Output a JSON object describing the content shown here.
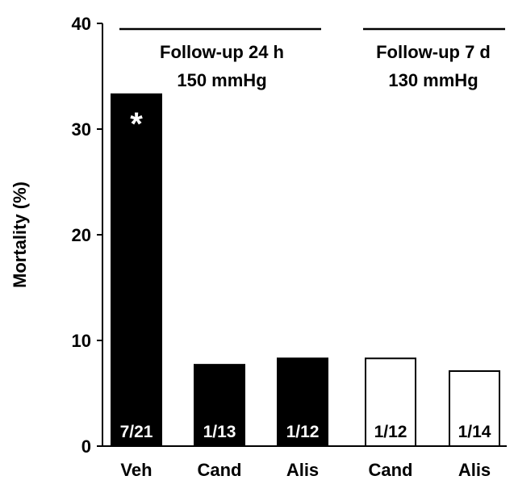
{
  "chart_data": {
    "type": "bar",
    "ylabel": "Mortality (%)",
    "ylim": [
      0,
      40
    ],
    "yticks": [
      "0",
      "10",
      "20",
      "30",
      "40"
    ],
    "categories": [
      "Veh",
      "Cand",
      "Alis",
      "Cand",
      "Alis"
    ],
    "values": [
      33.3,
      7.7,
      8.3,
      8.3,
      7.1
    ],
    "bar_labels": [
      "7/21",
      "1/13",
      "1/12",
      "1/12",
      "1/14"
    ],
    "fill": [
      "filled",
      "filled",
      "filled",
      "open",
      "open"
    ],
    "annotations": [
      {
        "bar": 0,
        "text": "*"
      }
    ],
    "groups": [
      {
        "line1": "Follow-up 24 h",
        "line2": "150 mmHg",
        "bars": [
          0,
          1,
          2
        ]
      },
      {
        "line1": "Follow-up 7 d",
        "line2": "130 mmHg",
        "bars": [
          3,
          4
        ]
      }
    ],
    "colors": {
      "filled": "#000000",
      "open": "#ffffff",
      "axis": "#000000"
    }
  }
}
